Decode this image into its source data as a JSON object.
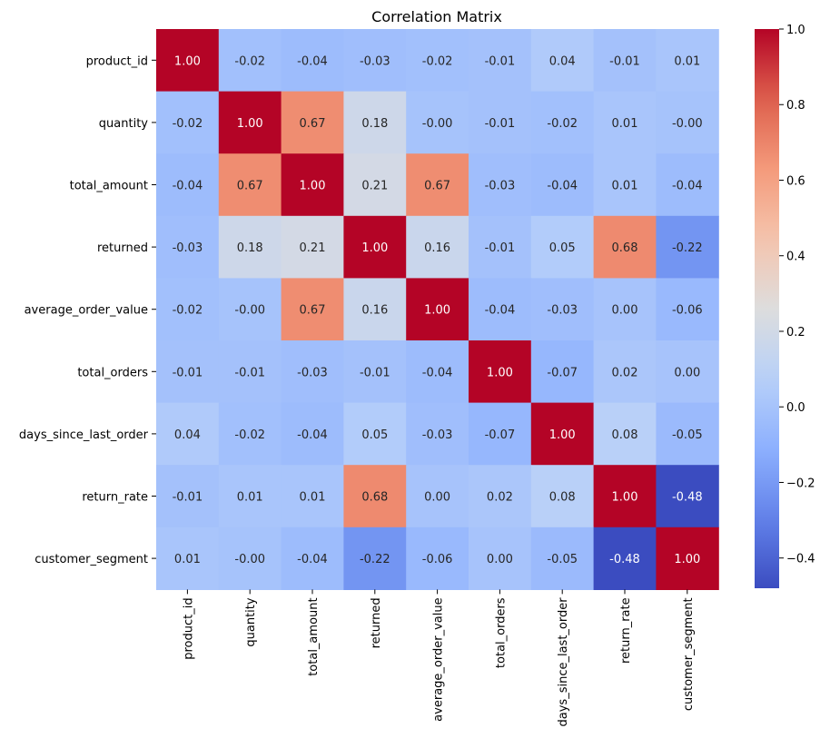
{
  "chart_data": {
    "type": "heatmap",
    "title": "Correlation Matrix",
    "xlabel": "",
    "ylabel": "",
    "colormap": "coolwarm",
    "vmin": -0.48,
    "vmax": 1.0,
    "row_labels": [
      "product_id",
      "quantity",
      "total_amount",
      "returned",
      "average_order_value",
      "total_orders",
      "days_since_last_order",
      "return_rate",
      "customer_segment"
    ],
    "col_labels": [
      "product_id",
      "quantity",
      "total_amount",
      "returned",
      "average_order_value",
      "total_orders",
      "days_since_last_order",
      "return_rate",
      "customer_segment"
    ],
    "values": [
      [
        1.0,
        -0.02,
        -0.04,
        -0.03,
        -0.02,
        -0.01,
        0.04,
        -0.01,
        0.01
      ],
      [
        -0.02,
        1.0,
        0.67,
        0.18,
        -0.001,
        -0.01,
        -0.02,
        0.01,
        -0.001
      ],
      [
        -0.04,
        0.67,
        1.0,
        0.21,
        0.67,
        -0.03,
        -0.04,
        0.01,
        -0.04
      ],
      [
        -0.03,
        0.18,
        0.21,
        1.0,
        0.16,
        -0.01,
        0.05,
        0.68,
        -0.22
      ],
      [
        -0.02,
        -0.001,
        0.67,
        0.16,
        1.0,
        -0.04,
        -0.03,
        0.001,
        -0.06
      ],
      [
        -0.01,
        -0.01,
        -0.03,
        -0.01,
        -0.04,
        1.0,
        -0.07,
        0.02,
        0.001
      ],
      [
        0.04,
        -0.02,
        -0.04,
        0.05,
        -0.03,
        -0.07,
        1.0,
        0.08,
        -0.05
      ],
      [
        -0.01,
        0.01,
        0.01,
        0.68,
        0.001,
        0.02,
        0.08,
        1.0,
        -0.48
      ],
      [
        0.01,
        -0.001,
        -0.04,
        -0.22,
        -0.06,
        0.001,
        -0.05,
        -0.48,
        1.0
      ]
    ],
    "annotation_format": "0.00",
    "colorbar_ticks": [
      1.0,
      0.8,
      0.6,
      0.4,
      0.2,
      0.0,
      -0.2,
      -0.4
    ],
    "colorbar_tick_labels": [
      "1.0",
      "0.8",
      "0.6",
      "0.4",
      "0.2",
      "0.0",
      "−0.2",
      "−0.4"
    ],
    "colorbar_range": [
      -0.48,
      1.0
    ]
  }
}
